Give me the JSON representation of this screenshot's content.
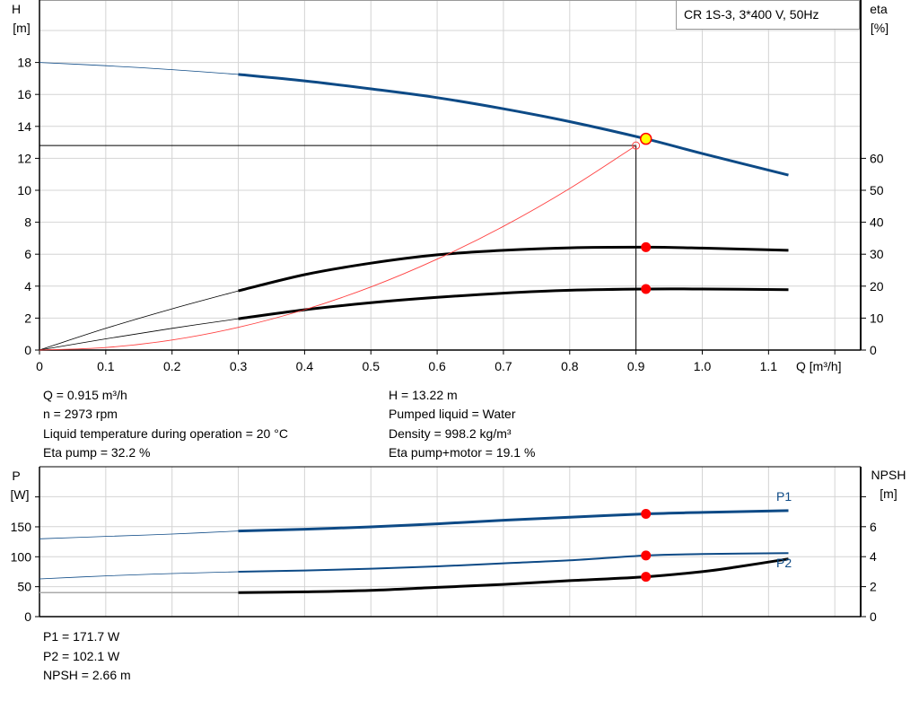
{
  "chart_data": [
    {
      "type": "line",
      "legend_box": "CR 1S-3, 3*400 V, 50Hz",
      "xlabel": "Q [m³/h]",
      "ylabel_left": [
        "H",
        "[m]"
      ],
      "ylabel_right": [
        "eta",
        "[%]"
      ],
      "xlim": [
        0,
        1.2
      ],
      "ylim_left": [
        0,
        20
      ],
      "ylim_right": [
        0,
        56.2
      ],
      "x_ticks": [
        "0",
        "0.1",
        "0.2",
        "0.3",
        "0.4",
        "0.5",
        "0.6",
        "0.7",
        "0.8",
        "0.9",
        "1.0",
        "1.1"
      ],
      "y_ticks_left": [
        "0",
        "2",
        "4",
        "6",
        "8",
        "10",
        "12",
        "14",
        "16",
        "18"
      ],
      "y_ticks_right": [
        "0",
        "10",
        "20",
        "30",
        "40",
        "50",
        "60"
      ],
      "grid": true,
      "operating_range_start": 0.3,
      "series": [
        {
          "id": "H",
          "axis": "left",
          "color": "#0d4a86",
          "x": [
            0,
            0.1,
            0.2,
            0.3,
            0.4,
            0.5,
            0.6,
            0.7,
            0.8,
            0.915,
            1.0,
            1.13
          ],
          "y": [
            18.0,
            17.8,
            17.55,
            17.25,
            16.85,
            16.35,
            15.8,
            15.1,
            14.3,
            13.22,
            12.3,
            10.95
          ]
        },
        {
          "id": "eta_pump",
          "axis": "right",
          "color": "#000000",
          "x": [
            0,
            0.1,
            0.2,
            0.3,
            0.4,
            0.5,
            0.6,
            0.7,
            0.8,
            0.915,
            1.0,
            1.13
          ],
          "y": [
            0,
            6.8,
            12.9,
            18.5,
            23.6,
            27.2,
            29.8,
            31.2,
            32.0,
            32.2,
            31.9,
            31.2
          ]
        },
        {
          "id": "eta_pump_motor",
          "axis": "right",
          "color": "#000000",
          "x": [
            0,
            0.1,
            0.2,
            0.3,
            0.4,
            0.5,
            0.6,
            0.7,
            0.8,
            0.915,
            1.0,
            1.13
          ],
          "y": [
            0,
            3.5,
            6.8,
            9.8,
            12.6,
            14.8,
            16.5,
            17.8,
            18.7,
            19.1,
            19.1,
            18.9
          ]
        },
        {
          "id": "system_curve",
          "axis": "left",
          "color": "#ff4040",
          "x": [
            0,
            0.1,
            0.2,
            0.3,
            0.4,
            0.5,
            0.6,
            0.7,
            0.8,
            0.9
          ],
          "y": [
            0,
            0.16,
            0.63,
            1.42,
            2.53,
            3.95,
            5.69,
            7.74,
            10.11,
            12.8
          ]
        }
      ],
      "duty_point": {
        "Q": 0.9,
        "H": 12.8
      },
      "operating_point": {
        "Q": 0.915,
        "H": 13.22,
        "eta_pump": 32.2,
        "eta_pump_motor": 19.1
      }
    },
    {
      "type": "line",
      "ylabel_left": [
        "P",
        "[W]"
      ],
      "ylabel_right": [
        "NPSH",
        "[m]"
      ],
      "xlim": [
        0,
        1.2
      ],
      "ylim_left": [
        0,
        250
      ],
      "ylim_right": [
        0,
        10
      ],
      "y_ticks_left": [
        "0",
        "50",
        "100",
        "150"
      ],
      "y_ticks_right": [
        "0",
        "2",
        "4",
        "6"
      ],
      "grid": true,
      "series": [
        {
          "id": "P1",
          "name": "P1",
          "axis": "left",
          "color": "#0d4a86",
          "x": [
            0,
            0.1,
            0.2,
            0.3,
            0.4,
            0.5,
            0.6,
            0.7,
            0.8,
            0.915,
            1.0,
            1.13
          ],
          "y": [
            130,
            134,
            138,
            143,
            146,
            150,
            155,
            161,
            166,
            171.7,
            174,
            177
          ]
        },
        {
          "id": "P2",
          "name": "P2",
          "axis": "left",
          "color": "#0d4a86",
          "x": [
            0,
            0.1,
            0.2,
            0.3,
            0.4,
            0.5,
            0.6,
            0.7,
            0.8,
            0.915,
            1.0,
            1.13
          ],
          "y": [
            63,
            68,
            72,
            75,
            77,
            80,
            84,
            89,
            94,
            102.1,
            104.5,
            106
          ]
        },
        {
          "id": "NPSH",
          "axis": "right",
          "color": "#000000",
          "x": [
            0,
            0.3,
            0.4,
            0.5,
            0.6,
            0.7,
            0.8,
            0.915,
            1.0,
            1.05,
            1.13
          ],
          "y": [
            1.6,
            1.6,
            1.65,
            1.75,
            1.95,
            2.15,
            2.4,
            2.66,
            3.0,
            3.3,
            3.85
          ]
        }
      ],
      "operating_point": {
        "Q": 0.915,
        "P1": 171.7,
        "P2": 102.1,
        "NPSH": 2.66
      }
    }
  ],
  "info_top": {
    "left": [
      "Q = 0.915 m³/h",
      "n = 2973 rpm",
      "Liquid temperature during operation = 20 °C",
      "Eta pump = 32.2 %"
    ],
    "right": [
      "H = 13.22 m",
      "Pumped liquid = Water",
      "Density = 998.2 kg/m³",
      "Eta pump+motor = 19.1 %"
    ]
  },
  "info_bottom": [
    "P1 = 171.7 W",
    "P2 = 102.1 W",
    "NPSH = 2.66 m"
  ]
}
